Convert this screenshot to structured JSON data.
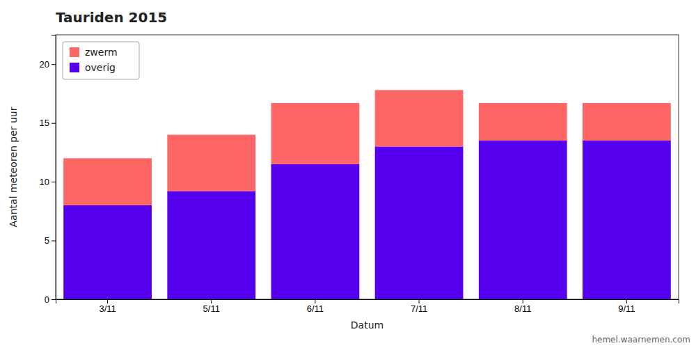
{
  "chart_data": {
    "type": "bar",
    "stacked": true,
    "title": "Tauriden 2015",
    "xlabel": "Datum",
    "ylabel": "Aantal meteoren per uur",
    "categories": [
      "3/11",
      "5/11",
      "6/11",
      "7/11",
      "8/11",
      "9/11"
    ],
    "series": [
      {
        "name": "overig",
        "color": "#5500ee",
        "values": [
          8.0,
          9.2,
          11.5,
          13.0,
          13.5,
          13.5
        ]
      },
      {
        "name": "zwerm",
        "color": "#ff6666",
        "values": [
          4.0,
          4.8,
          5.2,
          4.8,
          3.2,
          3.2
        ]
      }
    ],
    "ylim": [
      0,
      22.5
    ],
    "yticks": [
      0,
      5,
      10,
      15,
      20
    ],
    "legend": "upper left",
    "grid": false,
    "annotations": [
      "hemel.waarnemen.com"
    ]
  }
}
